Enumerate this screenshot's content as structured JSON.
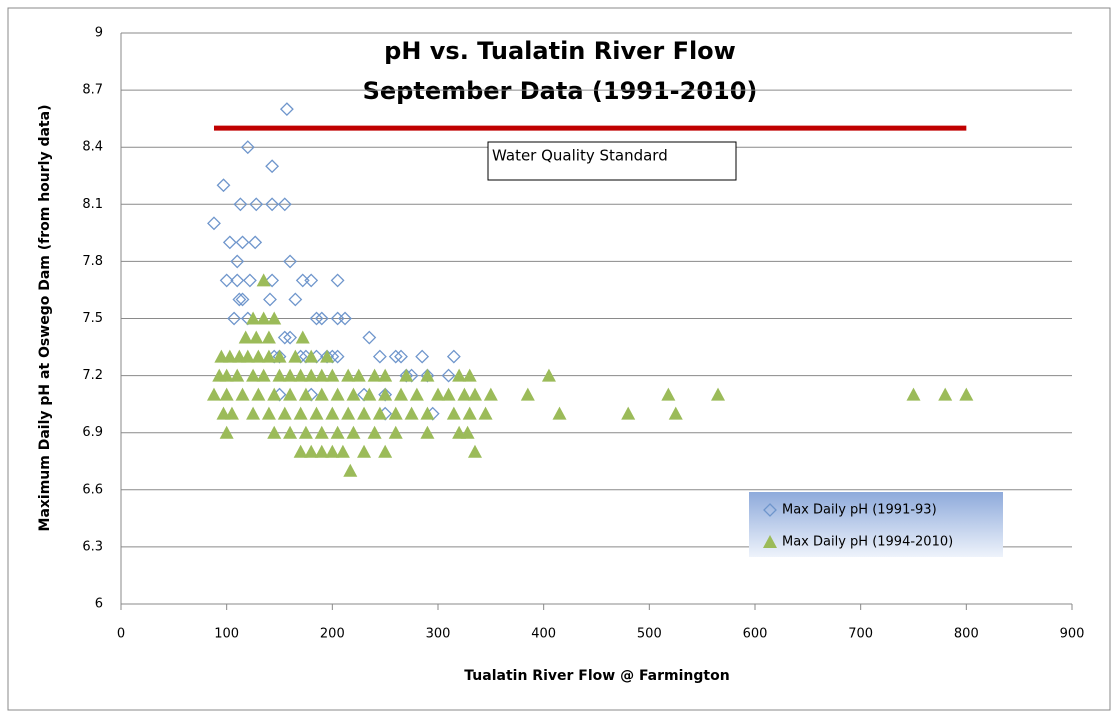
{
  "chart_data": {
    "type": "scatter",
    "title": "pH  vs. Tualatin River Flow",
    "subtitle": "September Data (1991-2010)",
    "x_label": "Tualatin River Flow @ Farmington",
    "y_label": "Maximum Daily pH at Oswego Dam (from hourly data)",
    "xlim": [
      0,
      900
    ],
    "xticks": [
      0,
      100,
      200,
      300,
      400,
      500,
      600,
      700,
      800,
      900
    ],
    "ylim": [
      6,
      9
    ],
    "yticks": [
      6,
      6.3,
      6.6,
      6.9,
      7.2,
      7.5,
      7.8,
      8.1,
      8.4,
      8.7,
      9
    ],
    "grid": true,
    "legend": "lower right",
    "annotation": "Water Quality Standard",
    "standard_line": {
      "x": [
        88,
        800
      ],
      "y": [
        8.5,
        8.5
      ],
      "color": "#c00000"
    },
    "series": [
      {
        "name": "Max Daily pH (1991-93)",
        "marker": "diamond",
        "color": "#6f96cc",
        "x": [
          88,
          97,
          120,
          143,
          157,
          113,
          128,
          143,
          155,
          103,
          115,
          127,
          110,
          160,
          100,
          110,
          122,
          143,
          172,
          180,
          205,
          112,
          115,
          141,
          165,
          107,
          120,
          185,
          190,
          205,
          212,
          155,
          160,
          235,
          145,
          150,
          170,
          175,
          185,
          195,
          200,
          205,
          245,
          260,
          265,
          285,
          315,
          270,
          275,
          310,
          290,
          150,
          180,
          230,
          250,
          295,
          250
        ],
        "values": [
          8.0,
          8.2,
          8.4,
          8.3,
          8.6,
          8.1,
          8.1,
          8.1,
          8.1,
          7.9,
          7.9,
          7.9,
          7.8,
          7.8,
          7.7,
          7.7,
          7.7,
          7.7,
          7.7,
          7.7,
          7.7,
          7.6,
          7.6,
          7.6,
          7.6,
          7.5,
          7.5,
          7.5,
          7.5,
          7.5,
          7.5,
          7.4,
          7.4,
          7.4,
          7.3,
          7.3,
          7.3,
          7.3,
          7.3,
          7.3,
          7.3,
          7.3,
          7.3,
          7.3,
          7.3,
          7.3,
          7.3,
          7.2,
          7.2,
          7.2,
          7.2,
          7.1,
          7.1,
          7.1,
          7.1,
          7.0,
          7.0
        ]
      },
      {
        "name": "Max Daily pH (1994-2010)",
        "marker": "triangle",
        "color": "#9bbb59",
        "x": [
          385,
          405,
          415,
          480,
          518,
          525,
          565,
          750,
          780,
          800,
          335,
          217,
          135,
          125,
          135,
          145,
          118,
          128,
          140,
          172,
          95,
          103,
          112,
          120,
          130,
          140,
          150,
          165,
          180,
          195,
          93,
          100,
          110,
          125,
          135,
          150,
          160,
          170,
          180,
          190,
          200,
          215,
          225,
          240,
          250,
          270,
          290,
          320,
          330,
          88,
          100,
          115,
          130,
          145,
          160,
          175,
          190,
          205,
          220,
          235,
          250,
          265,
          280,
          300,
          310,
          325,
          335,
          350,
          97,
          105,
          125,
          140,
          155,
          170,
          185,
          200,
          215,
          230,
          245,
          260,
          275,
          290,
          315,
          330,
          345,
          100,
          145,
          160,
          175,
          190,
          205,
          220,
          240,
          260,
          290,
          320,
          328,
          170,
          180,
          190,
          200,
          210,
          230,
          250
        ],
        "values": [
          7.1,
          7.2,
          7.0,
          7.0,
          7.1,
          7.0,
          7.1,
          7.1,
          7.1,
          7.1,
          6.8,
          6.7,
          7.7,
          7.5,
          7.5,
          7.5,
          7.4,
          7.4,
          7.4,
          7.4,
          7.3,
          7.3,
          7.3,
          7.3,
          7.3,
          7.3,
          7.3,
          7.3,
          7.3,
          7.3,
          7.2,
          7.2,
          7.2,
          7.2,
          7.2,
          7.2,
          7.2,
          7.2,
          7.2,
          7.2,
          7.2,
          7.2,
          7.2,
          7.2,
          7.2,
          7.2,
          7.2,
          7.2,
          7.2,
          7.1,
          7.1,
          7.1,
          7.1,
          7.1,
          7.1,
          7.1,
          7.1,
          7.1,
          7.1,
          7.1,
          7.1,
          7.1,
          7.1,
          7.1,
          7.1,
          7.1,
          7.1,
          7.1,
          7.0,
          7.0,
          7.0,
          7.0,
          7.0,
          7.0,
          7.0,
          7.0,
          7.0,
          7.0,
          7.0,
          7.0,
          7.0,
          7.0,
          7.0,
          7.0,
          7.0,
          6.9,
          6.9,
          6.9,
          6.9,
          6.9,
          6.9,
          6.9,
          6.9,
          6.9,
          6.9,
          6.9,
          6.9,
          6.8,
          6.8,
          6.8,
          6.8,
          6.8,
          6.8,
          6.8
        ]
      }
    ]
  }
}
